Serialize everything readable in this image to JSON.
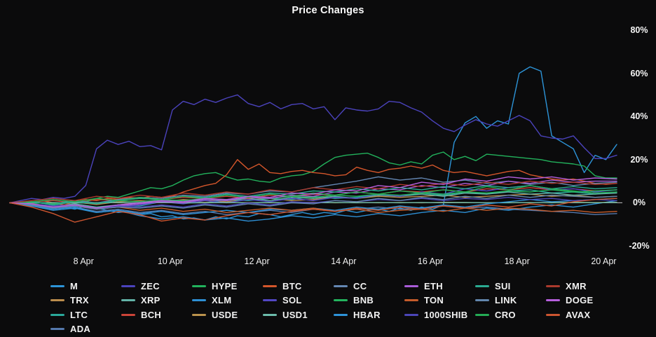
{
  "title": "Price Changes",
  "colors": {
    "background": "#0b0b0c",
    "text": "#f5f5f5",
    "zero_line": "#d9d9d9"
  },
  "chart_data": {
    "type": "line",
    "title": "Price Changes",
    "xlabel": "",
    "ylabel": "",
    "grid": "zero-line-only",
    "legend_position": "bottom",
    "legend_columns": [
      4,
      3,
      3,
      3,
      3,
      3,
      3,
      3
    ],
    "y_ticks": [
      "80%",
      "60%",
      "40%",
      "20%",
      "0%",
      "-20%"
    ],
    "y_tick_values": [
      80,
      60,
      40,
      20,
      0,
      -20
    ],
    "y_domain": [
      -20,
      80
    ],
    "x_ticks": [
      "8 Apr",
      "10 Apr",
      "12 Apr",
      "14 Apr",
      "16 Apr",
      "18 Apr",
      "20 Apr"
    ],
    "x_tick_days": [
      8,
      10,
      12,
      14,
      16,
      18,
      20
    ],
    "x_domain_days": [
      6.3,
      20.3
    ],
    "unit": "percent-change",
    "series": [
      {
        "name": "M",
        "color": "#2d94d8",
        "values": [
          0,
          -0.5,
          -1.5,
          -1,
          -2.5,
          -2,
          -3,
          -1.5,
          -2.5,
          -3.5,
          -4.5,
          -4,
          -5.5,
          -5,
          -6.5,
          -6,
          -7.5,
          -7,
          -8,
          -6.5,
          -7.5,
          -6,
          -6.5,
          -5,
          -5.5,
          -6.5,
          -5.5,
          -4.5,
          -5.5,
          -4.5,
          -5,
          -3.5,
          -4.5,
          -3.5,
          -3,
          -4,
          -2.5,
          -3.5,
          -2,
          -3,
          -1,
          28,
          37,
          40,
          34.5,
          38,
          36.5,
          60,
          63,
          61,
          31,
          28,
          25,
          14,
          22,
          20,
          27
        ]
      },
      {
        "name": "TRX",
        "color": "#bb8d4d",
        "values": [
          0,
          0.5,
          -0.5,
          0.3,
          -0.8,
          0.5,
          1,
          0.5,
          1.5,
          1,
          0.5,
          1.5,
          2,
          1,
          1.5,
          2.5,
          2,
          3,
          2.5,
          3,
          3.5,
          2.5,
          3,
          3.5,
          4,
          3,
          3.5,
          2.5,
          3
        ]
      },
      {
        "name": "LTC",
        "color": "#2aa89a",
        "values": [
          0,
          -1,
          -2,
          -1.5,
          -2.5,
          -1,
          -1.5,
          0.5,
          1,
          0,
          1.5,
          1,
          2,
          1.5,
          3,
          2,
          2.5,
          4,
          3,
          4.5,
          3.5,
          5,
          4,
          5.5,
          6,
          4.5,
          5,
          4,
          5
        ]
      },
      {
        "name": "ADA",
        "color": "#5579ad",
        "values": [
          0,
          -1.5,
          -3,
          -2,
          -4,
          -3,
          -4.5,
          -3.5,
          -5,
          -4,
          -5.5,
          -4.5,
          -3.5,
          -4.5,
          -3,
          -4,
          -3,
          -2,
          -3,
          -2.5,
          -1.5,
          -2.5,
          -2,
          -3,
          -3.5,
          -4,
          -4.5,
          -5.5,
          -5
        ]
      },
      {
        "name": "ZEC",
        "color": "#4b43bd",
        "values": [
          0,
          1,
          2,
          1.5,
          2.5,
          2,
          3,
          8,
          25,
          29,
          27,
          28.5,
          26,
          26.5,
          24.5,
          43,
          47,
          45.5,
          48,
          46.5,
          48.5,
          50,
          46,
          44.5,
          46.5,
          43.5,
          45.5,
          46,
          43.5,
          44.5,
          38.5,
          44,
          43,
          42.5,
          43.5,
          47,
          46.5,
          44,
          42,
          38,
          34.5,
          33,
          36,
          38.5,
          36.5,
          35.5,
          38,
          40.5,
          38,
          31,
          30,
          29.5,
          31,
          25.5,
          20.5,
          20.5,
          22
        ]
      },
      {
        "name": "XRP",
        "color": "#63b3a8",
        "values": [
          0,
          -0.5,
          -1.5,
          -0.5,
          -2,
          -1,
          0,
          1,
          0.5,
          1.5,
          1,
          2,
          1,
          2.5,
          2,
          3,
          2,
          3.5,
          3,
          4,
          3,
          4.5,
          4,
          5,
          4,
          4.5,
          3.5,
          4,
          4.5
        ]
      },
      {
        "name": "BCH",
        "color": "#cc4438",
        "values": [
          0,
          0.5,
          1,
          0,
          1.5,
          1,
          2,
          1.5,
          2.5,
          2,
          3,
          2,
          3.5,
          3,
          4,
          3.5,
          5,
          4,
          5.5,
          5,
          6,
          5,
          6.5,
          6,
          7,
          6,
          6.5,
          5.5,
          6
        ]
      },
      {
        "name": "HYPE",
        "color": "#22b25c",
        "values": [
          0,
          0.5,
          -0.5,
          0,
          -1,
          0.5,
          1,
          0.5,
          2,
          3,
          2.5,
          4,
          5.5,
          7,
          6.5,
          8,
          10.5,
          12.5,
          13.5,
          14,
          12,
          10.5,
          11,
          10,
          9.5,
          11.5,
          12.5,
          13,
          14.5,
          18,
          21,
          22,
          22.5,
          23,
          21,
          18.5,
          17.5,
          19,
          18,
          22,
          23.5,
          20,
          21.5,
          19.5,
          22.5,
          22,
          21.5,
          21,
          20.5,
          20,
          19,
          18.5,
          18,
          17,
          12.5,
          11.5,
          11.5
        ]
      },
      {
        "name": "XLM",
        "color": "#2e8fd4",
        "values": [
          0,
          -1,
          -3,
          -2,
          -4.5,
          -3.5,
          -6,
          -7.5,
          -6.5,
          -8,
          -7,
          -8.5,
          -7.5,
          -6,
          -7,
          -5.5,
          -6.5,
          -5,
          -6,
          -4.5,
          -3.5,
          -4.5,
          -2.5,
          -3.5,
          -2,
          -1,
          -2,
          -0.5,
          1
        ]
      },
      {
        "name": "USDE",
        "color": "#bb934d",
        "values": [
          0,
          0.1,
          -0.1,
          0,
          0.1,
          0,
          -0.1,
          0.1,
          0,
          0.2,
          0,
          0.1,
          0,
          0.1,
          0.2,
          0,
          0.1,
          0,
          0.1,
          0,
          0.2,
          0.1,
          0,
          0.1,
          0,
          0.1,
          0.2,
          0.1,
          0.2
        ]
      },
      {
        "name": "BTC",
        "color": "#d4562b",
        "values": [
          0,
          0.5,
          -0.5,
          1,
          0,
          -1,
          0.5,
          1.5,
          1,
          2,
          1.5,
          2.5,
          2,
          3,
          2.5,
          3,
          5,
          6.5,
          8,
          9,
          13,
          20,
          15.5,
          18,
          14,
          13.5,
          14.5,
          15,
          14,
          13.5,
          12.5,
          13,
          16.5,
          15,
          14,
          15.5,
          16,
          17,
          16,
          17.5,
          15,
          14,
          14.5,
          13.5,
          12.5,
          13.5,
          14.5,
          15,
          13,
          12,
          11,
          10.5,
          11,
          10,
          9,
          8.5,
          9
        ]
      },
      {
        "name": "SOL",
        "color": "#5247c4",
        "values": [
          0,
          -1,
          -2.5,
          -1.5,
          -3,
          -2,
          -1,
          0.5,
          -0.5,
          1,
          0,
          1.5,
          0.5,
          2,
          1,
          2.5,
          2,
          4,
          3,
          5,
          4,
          6.5,
          5.5,
          7,
          8,
          6,
          6.5,
          5,
          6
        ]
      },
      {
        "name": "USD1",
        "color": "#6cbcab",
        "values": [
          0,
          0,
          0.1,
          -0.1,
          0,
          0.1,
          0,
          0.1,
          -0.1,
          0,
          0.1,
          0,
          0.1,
          0,
          0,
          0.1,
          0,
          0.1,
          0,
          0.1,
          0,
          0.1,
          0,
          0,
          0.1,
          0,
          0.1,
          0,
          0.1
        ]
      },
      {
        "name": "CC",
        "color": "#6487b3",
        "values": [
          0,
          0.5,
          -0.5,
          1,
          0,
          1.5,
          2.5,
          2,
          3.5,
          3,
          4.5,
          4,
          5.5,
          5,
          7,
          8.5,
          10,
          12,
          10.5,
          11.5,
          9.5,
          10.5,
          9,
          10,
          8.5,
          9.5,
          8,
          9,
          9.5
        ]
      },
      {
        "name": "BNB",
        "color": "#23b45e",
        "values": [
          0,
          0.3,
          -0.5,
          0.5,
          -0.3,
          1,
          0.5,
          1.5,
          1,
          2,
          1.5,
          2.5,
          2,
          3,
          2.5,
          3.5,
          3,
          4,
          3.5,
          4.5,
          4,
          5,
          4.5,
          5.5,
          5,
          6,
          5,
          5.5,
          6
        ]
      },
      {
        "name": "HBAR",
        "color": "#2e93d8",
        "values": [
          0,
          -1.5,
          -3.5,
          -2.5,
          -4.5,
          -3.5,
          -5,
          -4,
          -5.5,
          -4.5,
          -3.5,
          -4.5,
          -3,
          -3.5,
          -2.5,
          -3.5,
          -2,
          -3,
          -1.5,
          -2.5,
          -1,
          -2,
          -0.5,
          0.5,
          1.5,
          0.5,
          1,
          1.5,
          2
        ]
      },
      {
        "name": "ETH",
        "color": "#a95cd8",
        "values": [
          0,
          -0.5,
          -2,
          -1,
          -2.5,
          -1.5,
          -0.5,
          0.5,
          0,
          1.5,
          1,
          2.5,
          2,
          3.5,
          3,
          5,
          4.5,
          6.5,
          6,
          8,
          7,
          9,
          8,
          10,
          9,
          10.5,
          9.5,
          10,
          10
        ]
      },
      {
        "name": "TON",
        "color": "#c55c2b",
        "values": [
          0,
          -0.5,
          -2,
          -1,
          -3,
          -2,
          -3.5,
          -2.5,
          -4,
          -3,
          -4.5,
          -3.5,
          -2.5,
          -3.5,
          -2.5,
          -4,
          -3,
          -4.5,
          -3.5,
          -3,
          -4,
          -2.5,
          -3.5,
          -2.5,
          -3,
          -4,
          -3.5,
          -4.5,
          -4
        ]
      },
      {
        "name": "1000SHIB",
        "color": "#4c46b8",
        "values": [
          0,
          -0.5,
          -1.5,
          -1,
          -2.5,
          -1.5,
          -2,
          -1,
          -2,
          -0.5,
          -1.5,
          0,
          -1,
          0.5,
          0,
          1,
          0.5,
          1.5,
          1,
          2,
          1,
          2,
          1.5,
          2.5,
          1.5,
          2,
          1,
          1.5,
          1
        ]
      },
      {
        "name": "SUI",
        "color": "#2bab92",
        "values": [
          0,
          0.5,
          -1,
          0.5,
          -0.5,
          1,
          2,
          1.5,
          3,
          2.5,
          4,
          3,
          4.5,
          4,
          5.5,
          5,
          6.5,
          5.5,
          7,
          6,
          7.5,
          6.5,
          8,
          7,
          8,
          6.5,
          7.5,
          6.5,
          7
        ]
      },
      {
        "name": "LINK",
        "color": "#6286ad",
        "values": [
          0,
          -1,
          -2.5,
          -1.5,
          -3,
          -2,
          -2.5,
          -1.5,
          -2.5,
          -1,
          -2,
          -0.5,
          -1.5,
          0,
          -0.5,
          1,
          0.5,
          2,
          1,
          2.5,
          1.5,
          3,
          2,
          3.5,
          2.5,
          3.5,
          3,
          2.5,
          3
        ]
      },
      {
        "name": "CRO",
        "color": "#24ab55",
        "values": [
          0,
          0.5,
          1.5,
          0.5,
          2,
          1,
          2.5,
          1.5,
          3,
          2,
          3.5,
          2.5,
          4,
          3,
          4.5,
          3.5,
          5,
          4,
          5.5,
          4.5,
          6,
          5,
          7.5,
          6,
          8,
          6.5,
          5.5,
          4.5,
          5
        ]
      },
      {
        "name": "XMR",
        "color": "#ab3a2d",
        "values": [
          0,
          1,
          2,
          1,
          3,
          2,
          3.5,
          2.5,
          4.5,
          3.5,
          5,
          4,
          6,
          5,
          7,
          6,
          7.5,
          6.5,
          8.5,
          7.5,
          9,
          8,
          9.5,
          8.5,
          10,
          9,
          9.5,
          8.5,
          9
        ]
      },
      {
        "name": "DOGE",
        "color": "#b75fdd",
        "values": [
          0,
          -0.5,
          -2,
          -1,
          -2.5,
          -1,
          0,
          1,
          0.5,
          2,
          1.5,
          3,
          2.5,
          4.5,
          4,
          6,
          5.5,
          8,
          7,
          9.5,
          8.5,
          11,
          10,
          12,
          11,
          12,
          10.5,
          11.5,
          11
        ]
      },
      {
        "name": "AVAX",
        "color": "#cc5530",
        "values": [
          0,
          -2,
          -5,
          -9,
          -6.5,
          -4,
          -5.5,
          -8.5,
          -7,
          -8,
          -6,
          -4.5,
          -5.5,
          -4,
          -3,
          -4,
          -2.5,
          -3.5,
          -2,
          -3,
          -1.5,
          -2.5,
          -1,
          -2,
          -0.5,
          -1.5,
          0.5,
          1.5,
          2
        ]
      }
    ]
  }
}
